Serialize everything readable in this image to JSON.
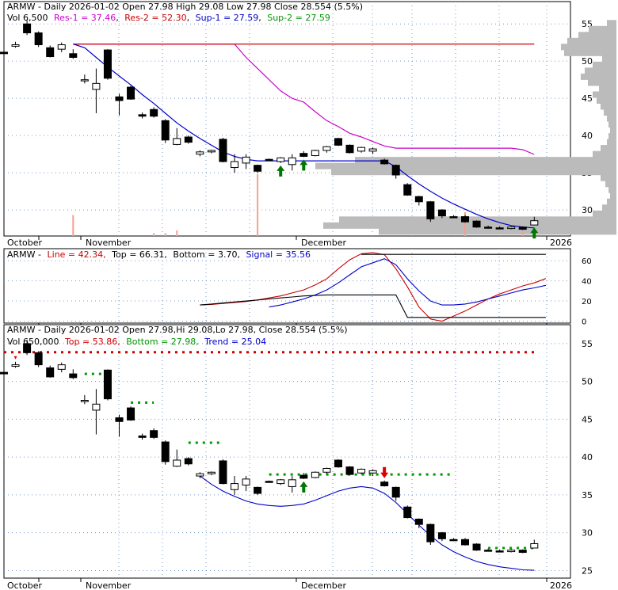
{
  "colors": {
    "res1": "#cc00cc",
    "res2": "#cc0000",
    "sup1": "#0000cc",
    "sup2": "#009900",
    "line": "#cc0000",
    "signal": "#0000cc",
    "top": "#cc0000",
    "bottom": "#009900",
    "trend": "#0000cc",
    "profile": "#bbbbbb",
    "grid": "#7799cc",
    "candle": "#000000"
  },
  "panel1": {
    "header": "ARMW - Daily 2026-01-02 Open 27.98  High 29.08  Low 27.98  Close 28.554 (5.5%)",
    "vol_label": "Vol 6,500",
    "res1_label": "Res-1 = 37.46",
    "res2_label": "Res-2 = 52.30",
    "sup1_label": "Sup-1 = 27.59",
    "sup2_label": "Sup-2 = 27.59",
    "xlabels": [
      "October",
      "November",
      "December",
      "2026"
    ]
  },
  "panel2": {
    "symbol_label": "ARMW -",
    "line_label": "Line = 42.34,",
    "top_label": "Top = 66.31,",
    "bottom_label": "Bottom = 3.70,",
    "signal_label": "Signal = 35.56"
  },
  "panel3": {
    "header": "ARMW - Daily 2026-01-02 Open 27.98,Hi 29.08,Lo 27.98, Close 28.554 (5.5%)",
    "vol_label": "Vol 650,000",
    "top_label": "Top = 53.86,",
    "bottom_label": "Bottom = 27.98,",
    "trend_label": "Trend = 25.04",
    "xlabels": [
      "October",
      "November",
      "December",
      "2026"
    ]
  },
  "chart_data": [
    {
      "type": "candlestick",
      "panel": "price-resistance-support",
      "y_ticks": [
        30,
        35,
        40,
        45,
        50,
        55
      ],
      "ylim": [
        26.5,
        58
      ],
      "candles": [
        {
          "o": 51.2,
          "h": 51.6,
          "l": 50.8,
          "c": 51.0
        },
        {
          "o": 52.0,
          "h": 52.6,
          "l": 51.8,
          "c": 52.2
        },
        {
          "o": 55.0,
          "h": 55.5,
          "l": 53.5,
          "c": 53.8
        },
        {
          "o": 53.8,
          "h": 54.0,
          "l": 51.9,
          "c": 52.2
        },
        {
          "o": 51.8,
          "h": 52.1,
          "l": 50.5,
          "c": 50.6
        },
        {
          "o": 51.6,
          "h": 52.5,
          "l": 51.2,
          "c": 52.2
        },
        {
          "o": 51.0,
          "h": 51.6,
          "l": 50.3,
          "c": 50.5
        },
        {
          "o": 47.5,
          "h": 48.2,
          "l": 47.0,
          "c": 47.5
        },
        {
          "o": 46.2,
          "h": 49.0,
          "l": 43.0,
          "c": 47.0
        },
        {
          "o": 51.5,
          "h": 51.6,
          "l": 47.5,
          "c": 47.7
        },
        {
          "o": 45.2,
          "h": 45.6,
          "l": 42.7,
          "c": 44.7
        },
        {
          "o": 46.5,
          "h": 46.7,
          "l": 44.8,
          "c": 44.9
        },
        {
          "o": 42.8,
          "h": 43.1,
          "l": 42.3,
          "c": 42.6
        },
        {
          "o": 43.5,
          "h": 43.8,
          "l": 42.4,
          "c": 42.6
        },
        {
          "o": 42.0,
          "h": 42.2,
          "l": 39.0,
          "c": 39.4
        },
        {
          "o": 38.8,
          "h": 41.0,
          "l": 38.7,
          "c": 39.6
        },
        {
          "o": 39.8,
          "h": 40.0,
          "l": 38.9,
          "c": 39.1
        },
        {
          "o": 37.5,
          "h": 38.0,
          "l": 37.2,
          "c": 37.8
        },
        {
          "o": 37.8,
          "h": 38.1,
          "l": 37.6,
          "c": 38.0
        },
        {
          "o": 39.5,
          "h": 39.7,
          "l": 36.4,
          "c": 36.5
        },
        {
          "o": 35.7,
          "h": 37.5,
          "l": 35.0,
          "c": 36.5
        },
        {
          "o": 36.3,
          "h": 37.5,
          "l": 35.5,
          "c": 37.1
        },
        {
          "o": 36.0,
          "h": 36.1,
          "l": 35.0,
          "c": 35.2
        },
        {
          "o": 36.8,
          "h": 36.9,
          "l": 36.6,
          "c": 36.7
        },
        {
          "o": 36.5,
          "h": 37.1,
          "l": 36.3,
          "c": 37.0
        },
        {
          "o": 36.1,
          "h": 37.5,
          "l": 35.3,
          "c": 37.0
        },
        {
          "o": 37.6,
          "h": 37.9,
          "l": 37.1,
          "c": 37.2
        },
        {
          "o": 37.3,
          "h": 38.1,
          "l": 37.2,
          "c": 38.0
        },
        {
          "o": 38.0,
          "h": 38.6,
          "l": 37.7,
          "c": 38.5
        },
        {
          "o": 39.6,
          "h": 39.7,
          "l": 38.6,
          "c": 38.7
        },
        {
          "o": 38.7,
          "h": 38.8,
          "l": 37.6,
          "c": 37.7
        },
        {
          "o": 37.9,
          "h": 38.5,
          "l": 37.7,
          "c": 38.4
        },
        {
          "o": 37.9,
          "h": 38.4,
          "l": 37.5,
          "c": 38.2
        },
        {
          "o": 36.7,
          "h": 36.9,
          "l": 36.1,
          "c": 36.2
        },
        {
          "o": 36.0,
          "h": 36.1,
          "l": 34.2,
          "c": 34.7
        },
        {
          "o": 33.4,
          "h": 33.6,
          "l": 31.9,
          "c": 32.0
        },
        {
          "o": 31.8,
          "h": 31.9,
          "l": 30.6,
          "c": 31.1
        },
        {
          "o": 31.1,
          "h": 31.2,
          "l": 28.4,
          "c": 28.8
        },
        {
          "o": 30.0,
          "h": 30.1,
          "l": 28.9,
          "c": 29.2
        },
        {
          "o": 29.1,
          "h": 29.3,
          "l": 28.9,
          "c": 29.0
        },
        {
          "o": 29.1,
          "h": 29.3,
          "l": 28.3,
          "c": 28.4
        },
        {
          "o": 28.5,
          "h": 28.6,
          "l": 27.6,
          "c": 27.7
        },
        {
          "o": 27.7,
          "h": 27.9,
          "l": 27.5,
          "c": 27.6
        },
        {
          "o": 27.6,
          "h": 27.8,
          "l": 27.4,
          "c": 27.5
        },
        {
          "o": 27.5,
          "h": 27.8,
          "l": 27.4,
          "c": 27.7
        },
        {
          "o": 27.7,
          "h": 27.8,
          "l": 27.3,
          "c": 27.4
        },
        {
          "o": 27.98,
          "h": 29.08,
          "l": 27.98,
          "c": 28.554
        }
      ],
      "series": [
        {
          "name": "Res-1",
          "color": "#cc00cc",
          "values": [
            null,
            null,
            null,
            null,
            null,
            null,
            52.3,
            52.3,
            52.3,
            52.3,
            52.3,
            52.3,
            52.3,
            52.3,
            52.3,
            52.3,
            52.3,
            52.3,
            52.3,
            52.3,
            52.3,
            50.5,
            49.0,
            47.5,
            46.0,
            45.0,
            44.5,
            43.2,
            42.0,
            41.2,
            40.3,
            39.8,
            39.2,
            38.6,
            38.3,
            38.3,
            38.3,
            38.3,
            38.3,
            38.3,
            38.3,
            38.3,
            38.3,
            38.3,
            38.3,
            38.1,
            37.46
          ]
        },
        {
          "name": "Res-2",
          "color": "#cc0000",
          "values": [
            null,
            null,
            null,
            null,
            null,
            null,
            52.3,
            52.3,
            52.3,
            52.3,
            52.3,
            52.3,
            52.3,
            52.3,
            52.3,
            52.3,
            52.3,
            52.3,
            52.3,
            52.3,
            52.3,
            52.3,
            52.3,
            52.3,
            52.3,
            52.3,
            52.3,
            52.3,
            52.3,
            52.3,
            52.3,
            52.3,
            52.3,
            52.3,
            52.3,
            52.3,
            52.3,
            52.3,
            52.3,
            52.3,
            52.3,
            52.3,
            52.3,
            52.3,
            52.3,
            52.3,
            52.3
          ]
        },
        {
          "name": "Sup-1",
          "color": "#0000cc",
          "values": [
            null,
            null,
            null,
            null,
            null,
            null,
            52.3,
            51.8,
            50.5,
            49.2,
            48.0,
            46.8,
            45.5,
            44.3,
            43.0,
            41.7,
            40.6,
            39.6,
            38.7,
            37.8,
            37.2,
            36.8,
            36.6,
            36.6,
            36.6,
            36.6,
            36.6,
            36.6,
            36.6,
            36.6,
            36.6,
            36.6,
            36.6,
            36.6,
            35.8,
            34.6,
            33.5,
            32.5,
            31.6,
            30.8,
            30.1,
            29.4,
            28.8,
            28.3,
            27.9,
            27.7,
            27.59
          ]
        },
        {
          "name": "Sup-2",
          "color": "#009900",
          "values": []
        }
      ],
      "volume": [
        0,
        0,
        0,
        0,
        0,
        0,
        22,
        0,
        0,
        0,
        0,
        0,
        0,
        3,
        3,
        6,
        0,
        0,
        0,
        0,
        0,
        0,
        65,
        0,
        0,
        0,
        0,
        0,
        0,
        0,
        0,
        0,
        0,
        0,
        0,
        0,
        0,
        0,
        0,
        0,
        25,
        0,
        0,
        0,
        0,
        4,
        6
      ],
      "buy_arrows": [
        24,
        26,
        46
      ],
      "sell_arrows": [],
      "volume_profile": [
        {
          "y": 55.1,
          "w": 12
        },
        {
          "y": 54.3,
          "w": 35
        },
        {
          "y": 53.5,
          "w": 48
        },
        {
          "y": 52.7,
          "w": 62
        },
        {
          "y": 51.9,
          "w": 70
        },
        {
          "y": 51.1,
          "w": 66
        },
        {
          "y": 50.3,
          "w": 18
        },
        {
          "y": 49.5,
          "w": 30
        },
        {
          "y": 48.7,
          "w": 40
        },
        {
          "y": 47.9,
          "w": 45
        },
        {
          "y": 47.1,
          "w": 36
        },
        {
          "y": 46.3,
          "w": 22
        },
        {
          "y": 45.5,
          "w": 30
        },
        {
          "y": 44.7,
          "w": 25
        },
        {
          "y": 43.9,
          "w": 20
        },
        {
          "y": 43.1,
          "w": 16
        },
        {
          "y": 42.3,
          "w": 12
        },
        {
          "y": 41.5,
          "w": 10
        },
        {
          "y": 40.7,
          "w": 8
        },
        {
          "y": 39.9,
          "w": 10
        },
        {
          "y": 39.1,
          "w": 12
        },
        {
          "y": 38.3,
          "w": 20
        },
        {
          "y": 37.5,
          "w": 30
        },
        {
          "y": 36.7,
          "w": 330
        },
        {
          "y": 35.9,
          "w": 380
        },
        {
          "y": 35.1,
          "w": 360
        },
        {
          "y": 34.3,
          "w": 20
        },
        {
          "y": 33.5,
          "w": 14
        },
        {
          "y": 32.7,
          "w": 10
        },
        {
          "y": 31.9,
          "w": 8
        },
        {
          "y": 31.1,
          "w": 12
        },
        {
          "y": 30.3,
          "w": 18
        },
        {
          "y": 29.5,
          "w": 30
        },
        {
          "y": 28.7,
          "w": 350
        },
        {
          "y": 27.9,
          "w": 370
        },
        {
          "y": 27.1,
          "w": 300
        }
      ]
    },
    {
      "type": "line",
      "panel": "oscillator",
      "y_ticks": [
        0,
        20,
        40,
        60
      ],
      "ylim": [
        -2,
        72
      ],
      "series": [
        {
          "name": "Line",
          "color": "#cc0000",
          "values": [
            null,
            null,
            null,
            null,
            null,
            null,
            null,
            null,
            null,
            null,
            null,
            null,
            null,
            null,
            null,
            null,
            null,
            16,
            16.6,
            17.5,
            18.5,
            19.5,
            21,
            23,
            25,
            28,
            31,
            36,
            42,
            52,
            61,
            67,
            68,
            66,
            52,
            34,
            14,
            2,
            0,
            5,
            10,
            16,
            22,
            27,
            31,
            35,
            38,
            42.34
          ]
        },
        {
          "name": "Signal",
          "color": "#0000cc",
          "values": [
            null,
            null,
            null,
            null,
            null,
            null,
            null,
            null,
            null,
            null,
            null,
            null,
            null,
            null,
            null,
            null,
            null,
            null,
            null,
            null,
            null,
            null,
            null,
            14,
            16,
            19,
            22,
            26,
            31,
            38,
            46,
            54,
            58,
            62,
            56,
            42,
            30,
            20,
            16,
            16,
            17,
            19,
            22,
            25,
            28,
            31,
            33,
            35.56
          ]
        },
        {
          "name": "Top",
          "color": "#000000",
          "values": [
            null,
            null,
            null,
            null,
            null,
            null,
            null,
            null,
            null,
            null,
            null,
            null,
            null,
            null,
            null,
            null,
            null,
            null,
            null,
            null,
            null,
            null,
            null,
            null,
            null,
            null,
            null,
            null,
            null,
            null,
            null,
            66.31,
            66.31,
            66.31,
            66.31,
            66.31,
            66.31,
            66.31,
            66.31,
            66.31,
            66.31,
            66.31,
            66.31,
            66.31,
            66.31,
            66.31,
            66.31,
            66.31
          ]
        },
        {
          "name": "Bottom",
          "color": "#000000",
          "values": [
            null,
            null,
            null,
            null,
            null,
            null,
            null,
            null,
            null,
            null,
            null,
            null,
            null,
            null,
            null,
            null,
            null,
            16,
            17,
            18,
            19,
            20,
            21,
            22,
            23,
            24,
            25,
            25.5,
            26,
            26,
            26,
            26,
            26,
            26,
            26,
            3.7,
            3.7,
            3.7,
            3.7,
            3.7,
            3.7,
            3.7,
            3.7,
            3.7,
            3.7,
            3.7,
            3.7,
            3.7
          ]
        }
      ]
    },
    {
      "type": "candlestick",
      "panel": "price-trend",
      "y_ticks": [
        25,
        30,
        35,
        40,
        45,
        50,
        55
      ],
      "ylim": [
        24,
        57.5
      ],
      "series": [
        {
          "name": "Top",
          "color": "#cc0000",
          "level": 53.86
        },
        {
          "name": "Bottom",
          "color": "#009900",
          "segments": [
            [
              7,
              9,
              51.0
            ],
            [
              11,
              13,
              47.2
            ],
            [
              16,
              19,
              41.9
            ],
            [
              23,
              39,
              37.7
            ],
            [
              42,
              46,
              27.98
            ]
          ]
        },
        {
          "name": "Trend",
          "color": "#0000cc",
          "values": [
            null,
            null,
            null,
            null,
            null,
            null,
            null,
            null,
            null,
            null,
            null,
            null,
            null,
            null,
            null,
            null,
            null,
            37.5,
            36.4,
            35.5,
            34.8,
            34.2,
            33.8,
            33.6,
            33.5,
            33.6,
            33.8,
            34.3,
            34.9,
            35.5,
            35.9,
            36.1,
            35.9,
            35.2,
            34.0,
            32.5,
            31.0,
            29.6,
            28.4,
            27.5,
            26.8,
            26.2,
            25.8,
            25.5,
            25.3,
            25.1,
            25.04
          ]
        }
      ],
      "buy_arrows": [
        26
      ],
      "sell_arrows": [
        33
      ],
      "small_sell_marker": [
        1
      ]
    }
  ]
}
